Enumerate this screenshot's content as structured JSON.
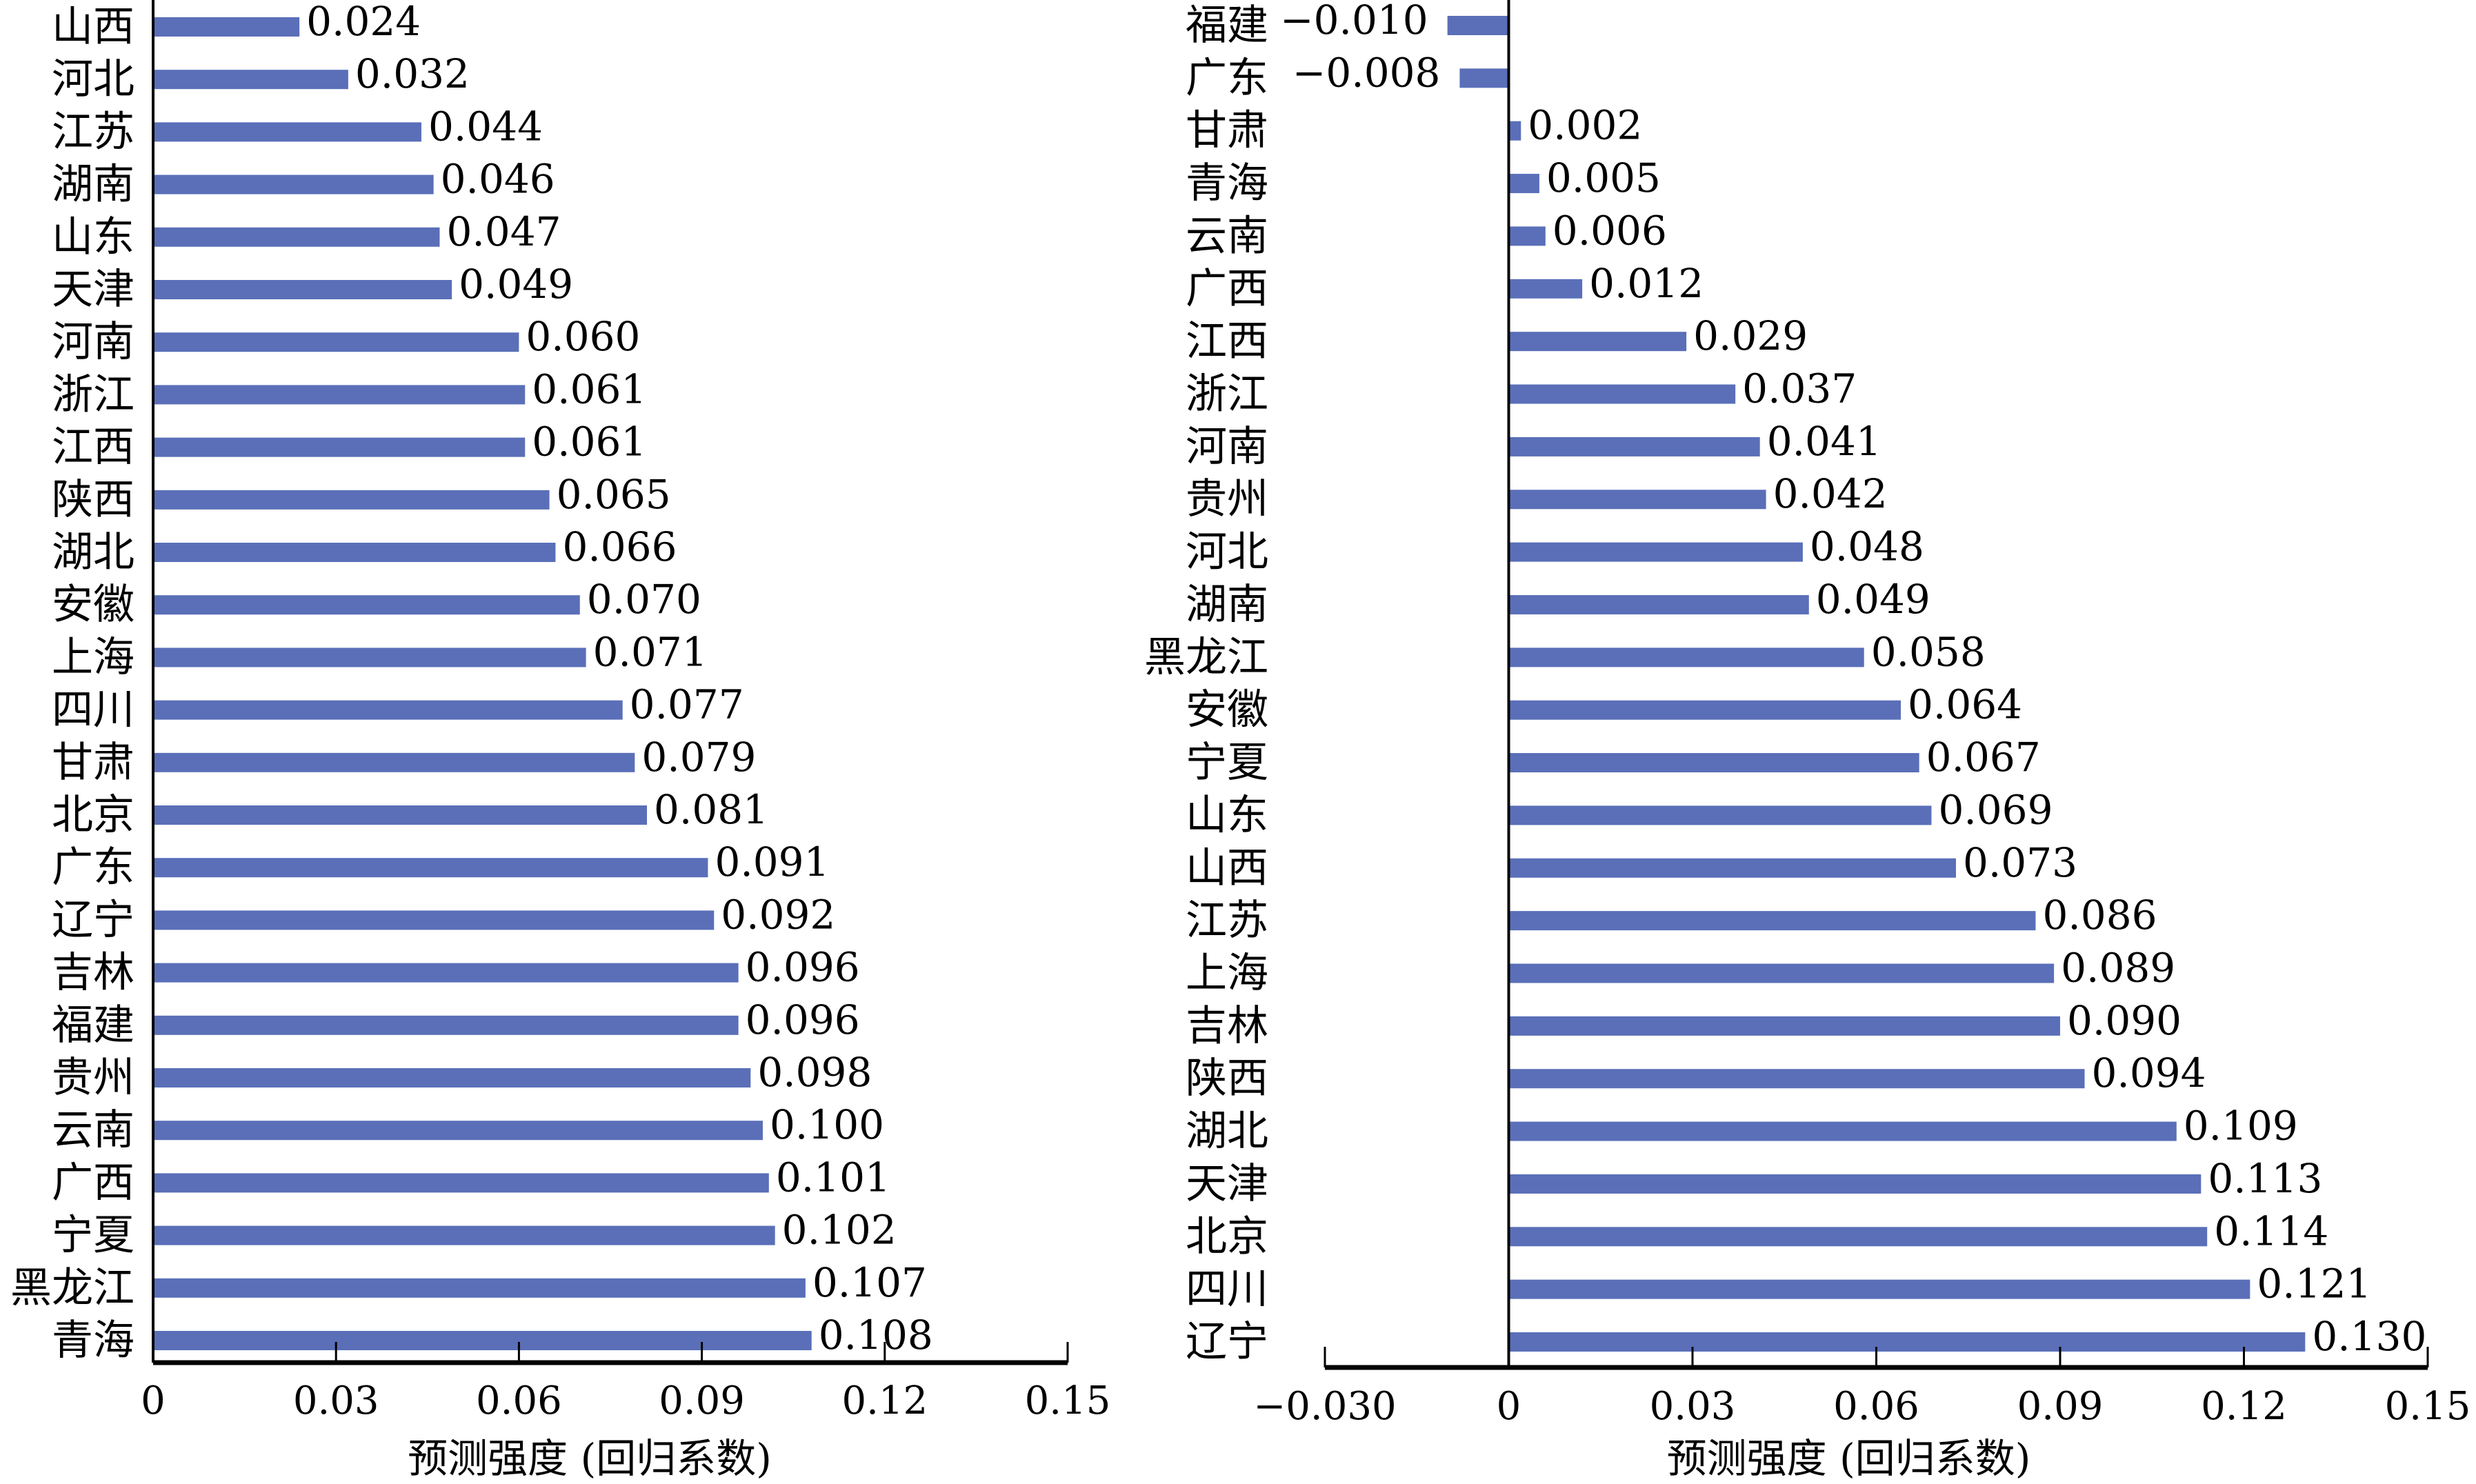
{
  "chart_data": [
    {
      "type": "bar",
      "orientation": "horizontal",
      "categories": [
        "山西",
        "河北",
        "江苏",
        "湖南",
        "山东",
        "天津",
        "河南",
        "浙江",
        "江西",
        "陕西",
        "湖北",
        "安徽",
        "上海",
        "四川",
        "甘肃",
        "北京",
        "广东",
        "辽宁",
        "吉林",
        "福建",
        "贵州",
        "云南",
        "广西",
        "宁夏",
        "黑龙江",
        "青海"
      ],
      "values": [
        0.024,
        0.032,
        0.044,
        0.046,
        0.047,
        0.049,
        0.06,
        0.061,
        0.061,
        0.065,
        0.066,
        0.07,
        0.071,
        0.077,
        0.079,
        0.081,
        0.091,
        0.092,
        0.096,
        0.096,
        0.098,
        0.1,
        0.101,
        0.102,
        0.107,
        0.108
      ],
      "value_labels": [
        "0.024",
        "0.032",
        "0.044",
        "0.046",
        "0.047",
        "0.049",
        "0.060",
        "0.061",
        "0.061",
        "0.065",
        "0.066",
        "0.070",
        "0.071",
        "0.077",
        "0.079",
        "0.081",
        "0.091",
        "0.092",
        "0.096",
        "0.096",
        "0.098",
        "0.100",
        "0.101",
        "0.102",
        "0.107",
        "0.108"
      ],
      "xlabel": "预测强度 (回归系数)",
      "xlim": [
        0,
        0.15
      ],
      "xticks": [
        0,
        0.03,
        0.06,
        0.09,
        0.12,
        0.15
      ],
      "xtick_labels": [
        "0",
        "0.03",
        "0.06",
        "0.09",
        "0.12",
        "0.15"
      ],
      "grid": false,
      "bar_color": "#5a6fb8"
    },
    {
      "type": "bar",
      "orientation": "horizontal",
      "categories": [
        "福建",
        "广东",
        "甘肃",
        "青海",
        "云南",
        "广西",
        "江西",
        "浙江",
        "河南",
        "贵州",
        "河北",
        "湖南",
        "黑龙江",
        "安徽",
        "宁夏",
        "山东",
        "山西",
        "江苏",
        "上海",
        "吉林",
        "陕西",
        "湖北",
        "天津",
        "北京",
        "四川",
        "辽宁"
      ],
      "values": [
        -0.01,
        -0.008,
        0.002,
        0.005,
        0.006,
        0.012,
        0.029,
        0.037,
        0.041,
        0.042,
        0.048,
        0.049,
        0.058,
        0.064,
        0.067,
        0.069,
        0.073,
        0.086,
        0.089,
        0.09,
        0.094,
        0.109,
        0.113,
        0.114,
        0.121,
        0.13
      ],
      "value_labels": [
        "−0.010",
        "−0.008",
        "0.002",
        "0.005",
        "0.006",
        "0.012",
        "0.029",
        "0.037",
        "0.041",
        "0.042",
        "0.048",
        "0.049",
        "0.058",
        "0.064",
        "0.067",
        "0.069",
        "0.073",
        "0.086",
        "0.089",
        "0.090",
        "0.094",
        "0.109",
        "0.113",
        "0.114",
        "0.121",
        "0.130"
      ],
      "xlabel": "预测强度 (回归系数)",
      "xlim": [
        -0.03,
        0.15
      ],
      "xticks": [
        -0.03,
        0,
        0.03,
        0.06,
        0.09,
        0.12,
        0.15
      ],
      "xtick_labels": [
        "−0.030",
        "0",
        "0.03",
        "0.06",
        "0.09",
        "0.12",
        "0.15"
      ],
      "grid": false,
      "bar_color": "#5a6fb8"
    }
  ]
}
